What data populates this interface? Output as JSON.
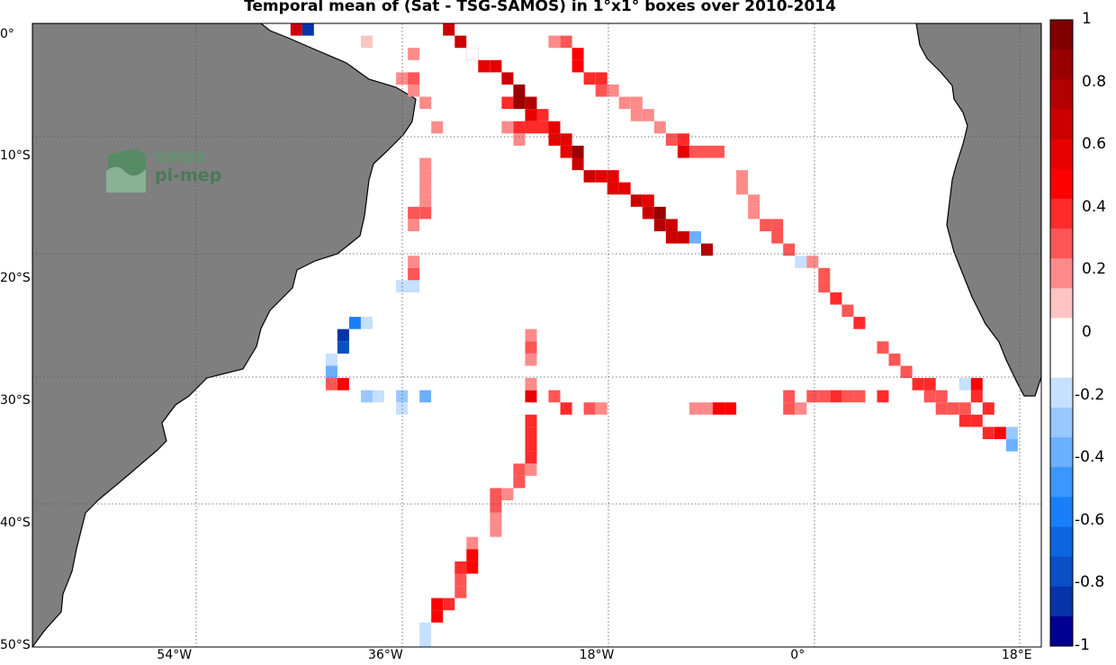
{
  "title": "Temporal mean of (Sat - TSG-SAMOS) in 1°x1° boxes over 2010-2014",
  "logo_text": [
    "smos",
    "pi-mep"
  ],
  "axes": {
    "lon_range": [
      -66,
      20
    ],
    "lat_range": [
      -50,
      1
    ],
    "x_ticks": [
      {
        "value": -54,
        "label": "54°W"
      },
      {
        "value": -36,
        "label": "36°W"
      },
      {
        "value": -18,
        "label": "18°W"
      },
      {
        "value": 0,
        "label": "0°"
      },
      {
        "value": 18,
        "label": "18°E"
      }
    ],
    "y_ticks": [
      {
        "value": 0,
        "label": "0°"
      },
      {
        "value": -10,
        "label": "10°S"
      },
      {
        "value": -20,
        "label": "20°S"
      },
      {
        "value": -30,
        "label": "30°S"
      },
      {
        "value": -40,
        "label": "40°S"
      },
      {
        "value": -50,
        "label": "50°S"
      }
    ],
    "grid": "dotted"
  },
  "colorbar": {
    "range": [
      -1,
      1
    ],
    "ticks": [
      "1",
      "0.8",
      "0.6",
      "0.4",
      "0.2",
      "0",
      "-0.2",
      "-0.4",
      "-0.6",
      "-0.8",
      "-1"
    ],
    "colors": [
      "#800000",
      "#990000",
      "#b30000",
      "#cc0000",
      "#e60000",
      "#ff0000",
      "#ff2a2a",
      "#ff5555",
      "#ff8a8a",
      "#ffc4c4",
      "#ffffff",
      "#ffffff",
      "#c6e0ff",
      "#99c8ff",
      "#6ab0ff",
      "#3d96ff",
      "#1a7ff7",
      "#0d66e0",
      "#0a4fc4",
      "#0733a8",
      "#000090"
    ]
  },
  "chart_data": {
    "type": "heatmap",
    "units": "Sat - TSG-SAMOS",
    "cells": [
      {
        "lat": 0.5,
        "lon": -43.5,
        "v": 0.7
      },
      {
        "lat": 0.5,
        "lon": -42.5,
        "v": -0.9
      },
      {
        "lat": 0.5,
        "lon": -30.5,
        "v": 0.7
      },
      {
        "lat": 0.5,
        "lon": -39.5,
        "v": -0.1
      },
      {
        "lat": -0.5,
        "lon": -37.5,
        "v": 0.1
      },
      {
        "lat": -0.5,
        "lon": -29.5,
        "v": 0.7
      },
      {
        "lat": -1.5,
        "lon": -28.5,
        "v": 0.7
      },
      {
        "lat": -2.5,
        "lon": -27.5,
        "v": 0.6
      },
      {
        "lat": -2.5,
        "lon": -26.5,
        "v": 0.6
      },
      {
        "lat": -3.5,
        "lon": -25.5,
        "v": 0.7
      },
      {
        "lat": -4.5,
        "lon": -24.5,
        "v": 0.9
      },
      {
        "lat": -5.5,
        "lon": -24.5,
        "v": 0.9
      },
      {
        "lat": -5.5,
        "lon": -23.5,
        "v": 0.8
      },
      {
        "lat": -6.5,
        "lon": -23.5,
        "v": 0.6
      },
      {
        "lat": -6.5,
        "lon": -22.5,
        "v": 0.4
      },
      {
        "lat": -7.5,
        "lon": -24.5,
        "v": 0.4
      },
      {
        "lat": -7.5,
        "lon": -23.5,
        "v": 0.4
      },
      {
        "lat": -7.5,
        "lon": -22.5,
        "v": 0.4
      },
      {
        "lat": -7.5,
        "lon": -21.5,
        "v": 0.6
      },
      {
        "lat": -8.5,
        "lon": -21.5,
        "v": 0.6
      },
      {
        "lat": -8.5,
        "lon": -20.5,
        "v": 0.6
      },
      {
        "lat": -9.5,
        "lon": -20.5,
        "v": 0.6
      },
      {
        "lat": -9.5,
        "lon": -19.5,
        "v": 0.9
      },
      {
        "lat": -10.5,
        "lon": -19.5,
        "v": 0.7
      },
      {
        "lat": -11.5,
        "lon": -18.5,
        "v": 0.7
      },
      {
        "lat": -11.5,
        "lon": -17.5,
        "v": 0.6
      },
      {
        "lat": -11.5,
        "lon": -16.5,
        "v": 0.6
      },
      {
        "lat": -12.5,
        "lon": -16.5,
        "v": 0.6
      },
      {
        "lat": -12.5,
        "lon": -15.5,
        "v": 0.6
      },
      {
        "lat": -13.5,
        "lon": -14.5,
        "v": 0.7
      },
      {
        "lat": -13.5,
        "lon": -13.5,
        "v": 0.6
      },
      {
        "lat": -14.5,
        "lon": -13.5,
        "v": 0.7
      },
      {
        "lat": -14.5,
        "lon": -12.5,
        "v": 0.9
      },
      {
        "lat": -15.5,
        "lon": -12.5,
        "v": 0.8
      },
      {
        "lat": -15.5,
        "lon": -11.5,
        "v": 0.7
      },
      {
        "lat": -16.5,
        "lon": -11.5,
        "v": 0.7
      },
      {
        "lat": -16.5,
        "lon": -10.5,
        "v": 0.7
      },
      {
        "lat": -16.5,
        "lon": -9.5,
        "v": -0.4
      },
      {
        "lat": -17.5,
        "lon": -8.5,
        "v": 0.8
      },
      {
        "lat": -8.5,
        "lon": -24.5,
        "v": 0.2
      },
      {
        "lat": -7.5,
        "lon": -25.5,
        "v": 0.2
      },
      {
        "lat": -5.5,
        "lon": -25.5,
        "v": 0.4
      },
      {
        "lat": -1.5,
        "lon": -33.5,
        "v": 0.2
      },
      {
        "lat": -3.5,
        "lon": -34.5,
        "v": 0.2
      },
      {
        "lat": -3.5,
        "lon": -33.5,
        "v": 0.3
      },
      {
        "lat": -4.5,
        "lon": -33.5,
        "v": 0.2
      },
      {
        "lat": -5.5,
        "lon": -32.5,
        "v": 0.2
      },
      {
        "lat": -1.5,
        "lon": -28.5,
        "v": -0.1
      },
      {
        "lat": -0.5,
        "lon": -28.5,
        "v": -0.1
      },
      {
        "lat": -7.5,
        "lon": -31.5,
        "v": 0.2
      },
      {
        "lat": -10.5,
        "lon": -32.5,
        "v": 0.2
      },
      {
        "lat": -11.5,
        "lon": -32.5,
        "v": 0.2
      },
      {
        "lat": -12.5,
        "lon": -32.5,
        "v": 0.2
      },
      {
        "lat": -13.5,
        "lon": -32.5,
        "v": 0.2
      },
      {
        "lat": -14.5,
        "lon": -32.5,
        "v": 0.3
      },
      {
        "lat": -14.5,
        "lon": -33.5,
        "v": 0.3
      },
      {
        "lat": -15.5,
        "lon": -33.5,
        "v": 0.2
      },
      {
        "lat": -18.5,
        "lon": -33.5,
        "v": 0.2
      },
      {
        "lat": -19.5,
        "lon": -33.5,
        "v": 0.3
      },
      {
        "lat": -20.5,
        "lon": -34.5,
        "v": -0.2
      },
      {
        "lat": -20.5,
        "lon": -33.5,
        "v": -0.2
      },
      {
        "lat": -21.5,
        "lon": -34.5,
        "v": -0.1
      },
      {
        "lat": -23.5,
        "lon": -36.5,
        "v": -0.1
      },
      {
        "lat": -23.5,
        "lon": -37.5,
        "v": -0.2
      },
      {
        "lat": -23.5,
        "lon": -38.5,
        "v": -0.6
      },
      {
        "lat": -24.5,
        "lon": -39.5,
        "v": -0.9
      },
      {
        "lat": -25.5,
        "lon": -39.5,
        "v": -0.8
      },
      {
        "lat": -26.5,
        "lon": -40.5,
        "v": -0.2
      },
      {
        "lat": -27.5,
        "lon": -40.5,
        "v": -0.4
      },
      {
        "lat": -28.5,
        "lon": -40.5,
        "v": 0.3
      },
      {
        "lat": -28.5,
        "lon": -39.5,
        "v": 0.5
      },
      {
        "lat": -29.5,
        "lon": -38.5,
        "v": -0.1
      },
      {
        "lat": -29.5,
        "lon": -37.5,
        "v": -0.3
      },
      {
        "lat": -29.5,
        "lon": -36.5,
        "v": -0.2
      },
      {
        "lat": -29.5,
        "lon": -34.5,
        "v": -0.3
      },
      {
        "lat": -29.5,
        "lon": -33.5,
        "v": -0.1
      },
      {
        "lat": -29.5,
        "lon": -32.5,
        "v": -0.4
      },
      {
        "lat": -29.5,
        "lon": -31.5,
        "v": -0.1
      },
      {
        "lat": -30.5,
        "lon": -34.5,
        "v": -0.2
      },
      {
        "lat": -30.5,
        "lon": -33.5,
        "v": -0.1
      },
      {
        "lat": -29.5,
        "lon": -27.5,
        "v": -0.1
      },
      {
        "lat": -30.5,
        "lon": -25.5,
        "v": -0.1
      },
      {
        "lat": -29.5,
        "lon": -23.5,
        "v": 0.6
      },
      {
        "lat": -29.5,
        "lon": -21.5,
        "v": 0.3
      },
      {
        "lat": -30.5,
        "lon": -20.5,
        "v": 0.4
      },
      {
        "lat": -30.5,
        "lon": -18.5,
        "v": 0.3
      },
      {
        "lat": -30.5,
        "lon": -17.5,
        "v": 0.2
      },
      {
        "lat": -30.5,
        "lon": -9.5,
        "v": 0.2
      },
      {
        "lat": -30.5,
        "lon": -8.5,
        "v": 0.2
      },
      {
        "lat": -30.5,
        "lon": -7.5,
        "v": 0.5
      },
      {
        "lat": -30.5,
        "lon": -6.5,
        "v": 0.5
      },
      {
        "lat": -29.5,
        "lon": -1.5,
        "v": 0.3
      },
      {
        "lat": -30.5,
        "lon": -1.5,
        "v": 0.3
      },
      {
        "lat": -30.5,
        "lon": -0.5,
        "v": 0.2
      },
      {
        "lat": -29.5,
        "lon": 0.5,
        "v": 0.3
      },
      {
        "lat": -29.5,
        "lon": 1.5,
        "v": 0.3
      },
      {
        "lat": -29.5,
        "lon": 2.5,
        "v": 0.4
      },
      {
        "lat": -29.5,
        "lon": 3.5,
        "v": 0.3
      },
      {
        "lat": -29.5,
        "lon": 4.5,
        "v": 0.3
      },
      {
        "lat": -29.5,
        "lon": 6.5,
        "v": 0.4
      },
      {
        "lat": -29.5,
        "lon": 10.5,
        "v": 0.3
      },
      {
        "lat": -24.5,
        "lon": -23.5,
        "v": 0.2
      },
      {
        "lat": -25.5,
        "lon": -23.5,
        "v": 0.3
      },
      {
        "lat": -26.5,
        "lon": -23.5,
        "v": 0.2
      },
      {
        "lat": -28.5,
        "lon": -23.5,
        "v": 0.2
      },
      {
        "lat": -31.5,
        "lon": -23.5,
        "v": 0.4
      },
      {
        "lat": -32.5,
        "lon": -23.5,
        "v": 0.4
      },
      {
        "lat": -33.5,
        "lon": -23.5,
        "v": 0.4
      },
      {
        "lat": -34.5,
        "lon": -23.5,
        "v": 0.4
      },
      {
        "lat": -35.5,
        "lon": -24.5,
        "v": 0.3
      },
      {
        "lat": -35.5,
        "lon": -23.5,
        "v": 0.2
      },
      {
        "lat": -36.5,
        "lon": -24.5,
        "v": 0.3
      },
      {
        "lat": -37.5,
        "lon": -26.5,
        "v": 0.3
      },
      {
        "lat": -37.5,
        "lon": -25.5,
        "v": 0.2
      },
      {
        "lat": -38.5,
        "lon": -26.5,
        "v": 0.3
      },
      {
        "lat": -39.5,
        "lon": -26.5,
        "v": 0.2
      },
      {
        "lat": -40.5,
        "lon": -26.5,
        "v": 0.2
      },
      {
        "lat": -41.5,
        "lon": -28.5,
        "v": 0.2
      },
      {
        "lat": -42.5,
        "lon": -28.5,
        "v": 0.5
      },
      {
        "lat": -43.5,
        "lon": -29.5,
        "v": 0.4
      },
      {
        "lat": -43.5,
        "lon": -28.5,
        "v": 0.5
      },
      {
        "lat": -44.5,
        "lon": -29.5,
        "v": 0.3
      },
      {
        "lat": -45.5,
        "lon": -29.5,
        "v": 0.3
      },
      {
        "lat": -46.5,
        "lon": -31.5,
        "v": 0.5
      },
      {
        "lat": -46.5,
        "lon": -30.5,
        "v": 0.4
      },
      {
        "lat": -47.5,
        "lon": -31.5,
        "v": 0.5
      },
      {
        "lat": -48.5,
        "lon": -32.5,
        "v": -0.2
      },
      {
        "lat": -49.5,
        "lon": -32.5,
        "v": -0.2
      },
      {
        "lat": -0.5,
        "lon": -21.5,
        "v": 0.2
      },
      {
        "lat": -0.5,
        "lon": -20.5,
        "v": 0.3
      },
      {
        "lat": -1.5,
        "lon": -19.5,
        "v": 0.5
      },
      {
        "lat": -2.5,
        "lon": -19.5,
        "v": 0.5
      },
      {
        "lat": -3.5,
        "lon": -18.5,
        "v": 0.4
      },
      {
        "lat": -3.5,
        "lon": -17.5,
        "v": 0.4
      },
      {
        "lat": -4.5,
        "lon": -17.5,
        "v": 0.3
      },
      {
        "lat": -4.5,
        "lon": -16.5,
        "v": 0.2
      },
      {
        "lat": -5.5,
        "lon": -15.5,
        "v": 0.2
      },
      {
        "lat": -5.5,
        "lon": -14.5,
        "v": 0.2
      },
      {
        "lat": -6.5,
        "lon": -14.5,
        "v": 0.2
      },
      {
        "lat": -6.5,
        "lon": -13.5,
        "v": 0.2
      },
      {
        "lat": -7.5,
        "lon": -12.5,
        "v": 0.2
      },
      {
        "lat": -8.5,
        "lon": -11.5,
        "v": 0.3
      },
      {
        "lat": -8.5,
        "lon": -10.5,
        "v": 0.4
      },
      {
        "lat": -9.5,
        "lon": -10.5,
        "v": 0.6
      },
      {
        "lat": -9.5,
        "lon": -9.5,
        "v": 0.3
      },
      {
        "lat": -9.5,
        "lon": -8.5,
        "v": 0.3
      },
      {
        "lat": -9.5,
        "lon": -7.5,
        "v": 0.3
      },
      {
        "lat": -11.5,
        "lon": -5.5,
        "v": 0.2
      },
      {
        "lat": -12.5,
        "lon": -5.5,
        "v": 0.2
      },
      {
        "lat": -13.5,
        "lon": -4.5,
        "v": 0.2
      },
      {
        "lat": -14.5,
        "lon": -4.5,
        "v": 0.2
      },
      {
        "lat": -15.5,
        "lon": -3.5,
        "v": 0.3
      },
      {
        "lat": -15.5,
        "lon": -2.5,
        "v": 0.3
      },
      {
        "lat": -16.5,
        "lon": -2.5,
        "v": 0.3
      },
      {
        "lat": -17.5,
        "lon": -1.5,
        "v": 0.3
      },
      {
        "lat": -18.5,
        "lon": -0.5,
        "v": -0.2
      },
      {
        "lat": -18.5,
        "lon": 0.5,
        "v": 0.2
      },
      {
        "lat": -19.5,
        "lon": 1.5,
        "v": 0.3
      },
      {
        "lat": -20.5,
        "lon": 1.5,
        "v": 0.3
      },
      {
        "lat": -21.5,
        "lon": 2.5,
        "v": 0.4
      },
      {
        "lat": -22.5,
        "lon": 3.5,
        "v": 0.3
      },
      {
        "lat": -23.5,
        "lon": 4.5,
        "v": 0.4
      },
      {
        "lat": -24.5,
        "lon": 5.5,
        "v": -0.1
      },
      {
        "lat": -25.5,
        "lon": 6.5,
        "v": 0.3
      },
      {
        "lat": -26.5,
        "lon": 7.5,
        "v": 0.3
      },
      {
        "lat": -27.5,
        "lon": 8.5,
        "v": 0.3
      },
      {
        "lat": -28.5,
        "lon": 9.5,
        "v": 0.4
      },
      {
        "lat": -28.5,
        "lon": 10.5,
        "v": 0.4
      },
      {
        "lat": -29.5,
        "lon": 11.5,
        "v": 0.3
      },
      {
        "lat": -28.5,
        "lon": 13.5,
        "v": -0.2
      },
      {
        "lat": -28.5,
        "lon": 14.5,
        "v": 0.5
      },
      {
        "lat": -29.5,
        "lon": 14.5,
        "v": 0.4
      },
      {
        "lat": -30.5,
        "lon": 11.5,
        "v": 0.3
      },
      {
        "lat": -30.5,
        "lon": 12.5,
        "v": 0.3
      },
      {
        "lat": -30.5,
        "lon": 13.5,
        "v": 0.3
      },
      {
        "lat": -30.5,
        "lon": 15.5,
        "v": 0.4
      },
      {
        "lat": -31.5,
        "lon": 13.5,
        "v": 0.4
      },
      {
        "lat": -31.5,
        "lon": 14.5,
        "v": 0.4
      },
      {
        "lat": -32.5,
        "lon": 15.5,
        "v": 0.4
      },
      {
        "lat": -32.5,
        "lon": 16.5,
        "v": 0.5
      },
      {
        "lat": -32.5,
        "lon": 17.5,
        "v": -0.3
      },
      {
        "lat": -33.5,
        "lon": 17.5,
        "v": -0.4
      }
    ]
  }
}
